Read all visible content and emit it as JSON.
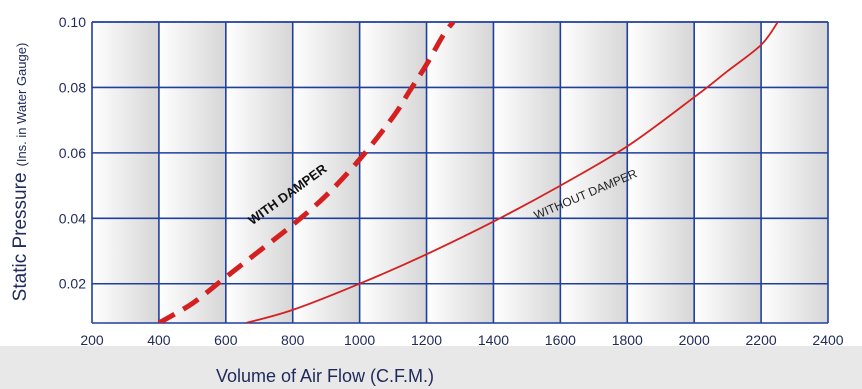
{
  "chart_data": {
    "type": "line",
    "title": "",
    "xlabel": "Volume of Air Flow (C.F.M.)",
    "ylabel": "Static Pressure",
    "ylabel_sub": "(Ins. in Water Gauge)",
    "xlim": [
      200,
      2400
    ],
    "ylim": [
      0.008,
      0.1
    ],
    "x_ticks": [
      200,
      400,
      600,
      800,
      1000,
      1200,
      1400,
      1600,
      1800,
      2000,
      2200,
      2400
    ],
    "x_tick_labels": [
      "200",
      "400",
      "600",
      "800",
      "1000",
      "1200",
      "1400",
      "1600",
      "1800",
      "2000",
      "2200",
      "2400"
    ],
    "y_ticks": [
      0.02,
      0.04,
      0.06,
      0.08,
      0.1
    ],
    "y_tick_labels": [
      "0.02",
      "0.04",
      "0.06",
      "0.08",
      "0.10"
    ],
    "grid": true,
    "series": [
      {
        "name": "WITH DAMPER",
        "style": "dashed",
        "color": "#d42020",
        "x": [
          400,
          500,
          600,
          700,
          800,
          900,
          1000,
          1100,
          1150,
          1200,
          1250,
          1280
        ],
        "y": [
          0.008,
          0.014,
          0.022,
          0.03,
          0.038,
          0.047,
          0.058,
          0.071,
          0.079,
          0.087,
          0.096,
          0.1
        ]
      },
      {
        "name": "WITHOUT DAMPER",
        "style": "solid",
        "color": "#d42020",
        "x": [
          660,
          800,
          1000,
          1200,
          1400,
          1600,
          1800,
          2000,
          2100,
          2200,
          2250
        ],
        "y": [
          0.008,
          0.012,
          0.02,
          0.029,
          0.039,
          0.05,
          0.062,
          0.077,
          0.085,
          0.093,
          0.1
        ]
      }
    ],
    "annotations": [
      {
        "text": "WITH DAMPER",
        "series": 0
      },
      {
        "text": "WITHOUT DAMPER",
        "series": 1
      }
    ]
  },
  "colors": {
    "grid": "#1f3f9e",
    "axis_text": "#1f2a5a",
    "curve": "#d42020",
    "band_light": "#ffffff",
    "band_dark": "#d6d6d6",
    "footer": "#e6e6e6"
  }
}
